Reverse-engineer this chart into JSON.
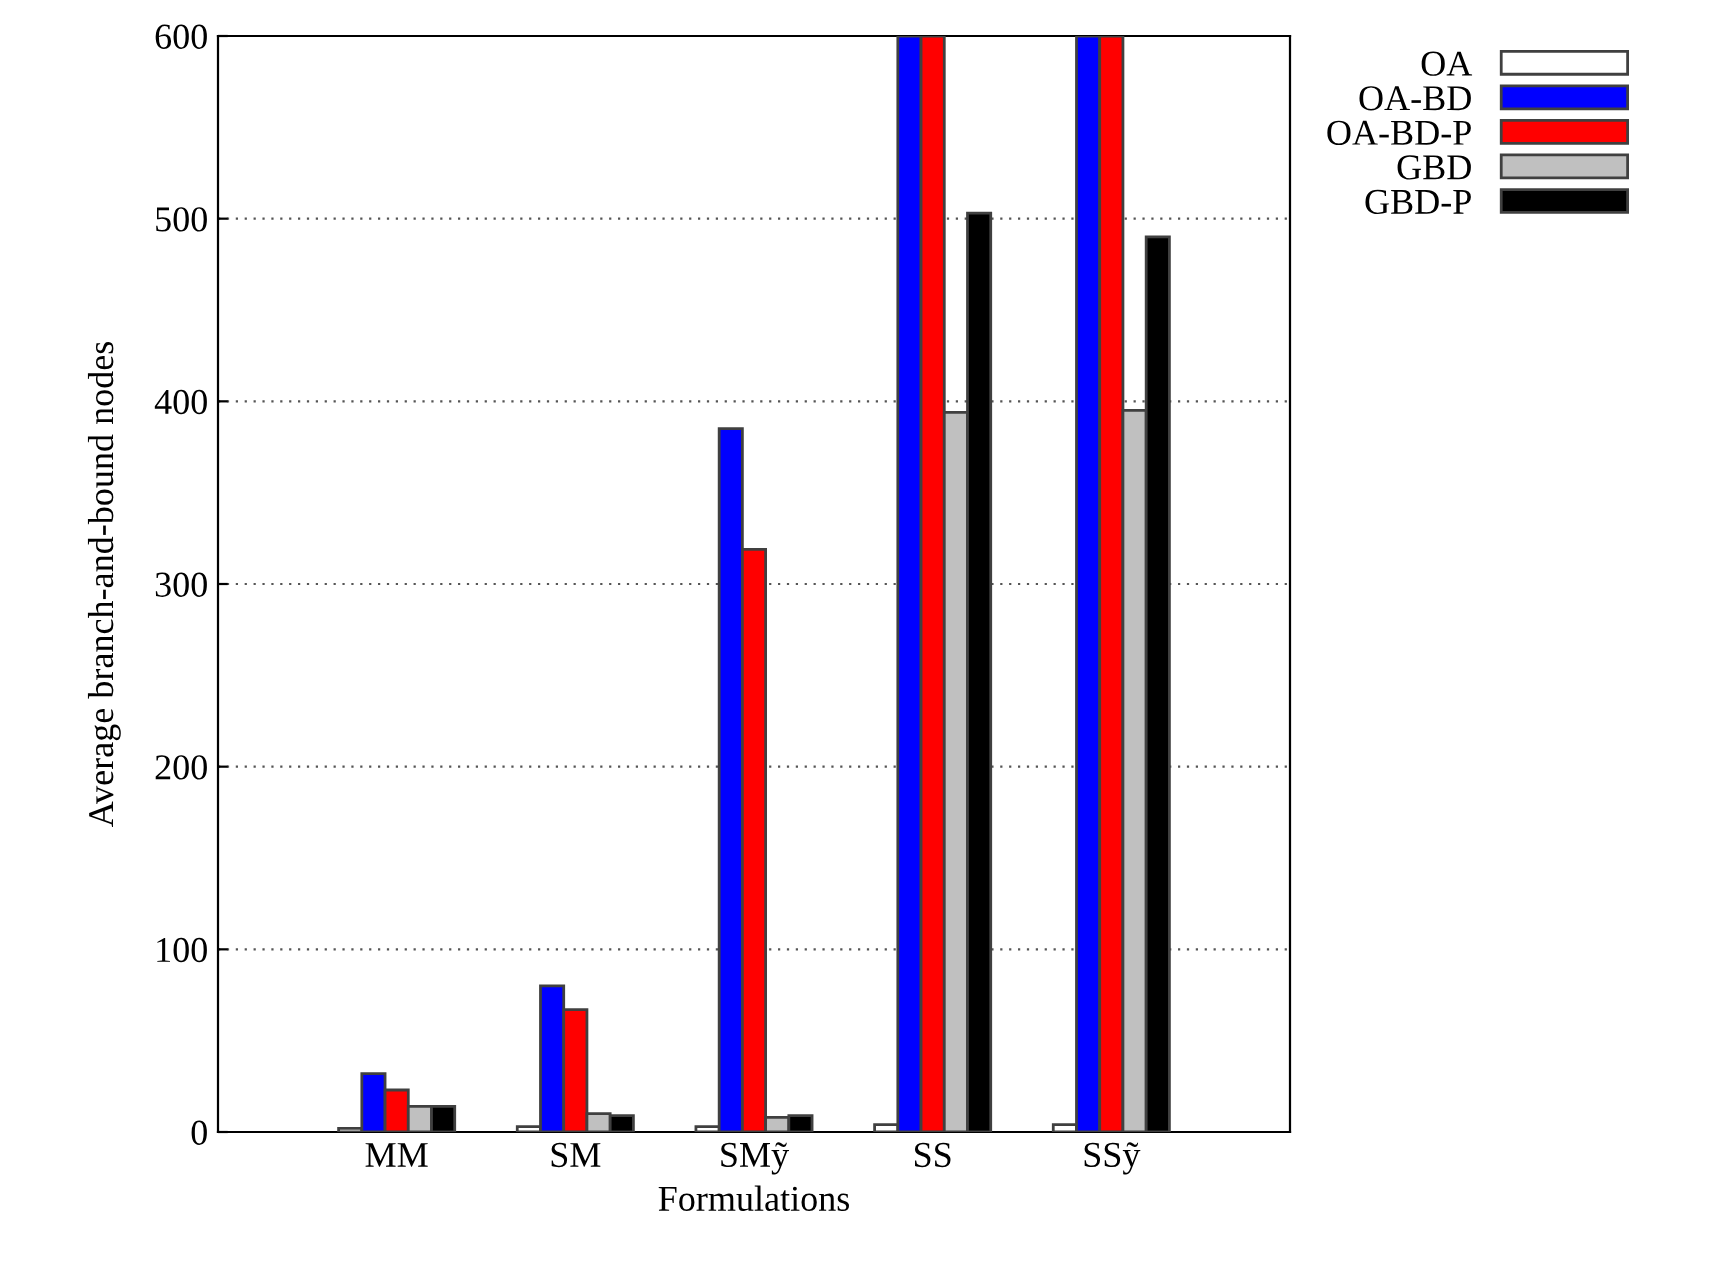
{
  "chart_data": {
    "type": "bar",
    "xlabel": "Formulations",
    "ylabel": "Average branch-and-bound nodes",
    "categories": [
      "MM",
      "SM",
      "SMỹ",
      "SS",
      "SSỹ"
    ],
    "series": [
      {
        "name": "OA",
        "color": "#ffffff",
        "values": [
          2,
          3,
          3,
          4,
          4
        ]
      },
      {
        "name": "OA-BD",
        "color": "#0000ff",
        "values": [
          32,
          80,
          385,
          600,
          600
        ]
      },
      {
        "name": "OA-BD-P",
        "color": "#ff0000",
        "values": [
          23,
          67,
          319,
          600,
          600
        ]
      },
      {
        "name": "GBD",
        "color": "#c0c0c0",
        "values": [
          14,
          10,
          8,
          394,
          395
        ]
      },
      {
        "name": "GBD-P",
        "color": "#000000",
        "values": [
          14,
          9,
          9,
          503,
          490
        ]
      }
    ],
    "ylim": [
      0,
      600
    ],
    "yticks": [
      0,
      100,
      200,
      300,
      400,
      500,
      600
    ],
    "grid": "y",
    "legend": "top right"
  }
}
